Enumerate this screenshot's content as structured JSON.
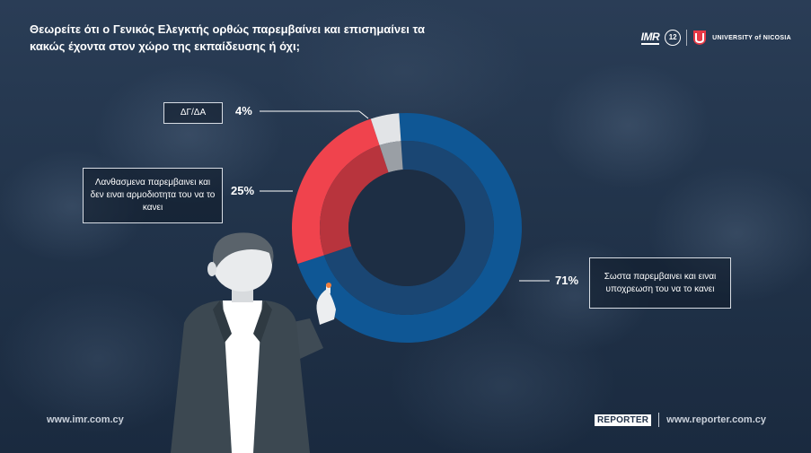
{
  "title": "Θεωρείτε ότι ο Γενικός Ελεγκτής ορθώς παρεμβαίνει και επισημαίνει τα κακώς έχοντα στον χώρο της εκπαίδευσης ή όχι;",
  "logos": {
    "imr": "IMR",
    "seal": "12",
    "university": "UNIVERSITY of NICOSIA"
  },
  "chart_data": {
    "type": "pie",
    "title": "Θεωρείτε ότι ο Γενικός Ελεγκτής ορθώς παρεμβαίνει και επισημαίνει τα κακώς έχοντα στον χώρο της εκπαίδευσης ή όχι;",
    "unit": "%",
    "slices": [
      {
        "label": "Σωστα παρεμβαινει και ειναι υποχρεωση του να το κανει",
        "value": 71,
        "value_label": "71%",
        "color": "#0f5795"
      },
      {
        "label": "Λανθασμενα παρεμβαινει και δεν ειναι αρμοδιοτητα του να το κανει",
        "value": 25,
        "value_label": "25%",
        "color": "#f0434d"
      },
      {
        "label": "ΔΓ/ΔΑ",
        "value": 4,
        "value_label": "4%",
        "color": "#e2e4e7"
      }
    ],
    "legend": "callout boxes beside slices"
  },
  "footer": {
    "left_url": "www.imr.com.cy",
    "brand": "REPORTER",
    "right_url": "www.reporter.com.cy"
  }
}
